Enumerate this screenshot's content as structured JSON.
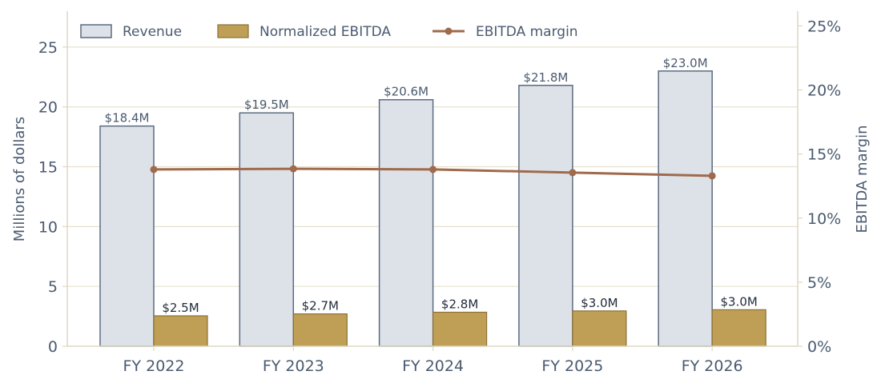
{
  "chart_data": {
    "type": "bar",
    "categories": [
      "FY 2022",
      "FY 2023",
      "FY 2024",
      "FY 2025",
      "FY 2026"
    ],
    "series": [
      {
        "name": "Revenue",
        "kind": "bar",
        "axis": "left",
        "values": [
          18.4,
          19.5,
          20.6,
          21.8,
          23.0
        ],
        "labels": [
          "$18.4M",
          "$19.5M",
          "$20.6M",
          "$21.8M",
          "$23.0M"
        ]
      },
      {
        "name": "Normalized EBITDA",
        "kind": "bar",
        "axis": "left",
        "values": [
          2.54,
          2.7,
          2.84,
          2.95,
          3.05
        ],
        "labels": [
          "$2.5M",
          "$2.7M",
          "$2.8M",
          "$3.0M",
          "$3.0M"
        ]
      },
      {
        "name": "EBITDA margin",
        "kind": "line",
        "axis": "right",
        "values": [
          13.8,
          13.85,
          13.8,
          13.55,
          13.3
        ]
      }
    ],
    "ylabel": "Millions of dollars",
    "y2label": "EBITDA margin",
    "ylim": [
      0,
      28
    ],
    "y2lim": [
      0,
      26.15
    ],
    "yticks": [
      0,
      5,
      10,
      15,
      20,
      25
    ],
    "y2ticks": [
      0,
      5,
      10,
      15,
      20,
      25
    ],
    "y2tick_labels": [
      "0%",
      "5%",
      "10%",
      "15%",
      "20%",
      "25%"
    ],
    "grid": "horizontal",
    "legend_position": "top-left",
    "colors": {
      "revenue_fill": "#dde2e9",
      "revenue_edge": "#5c6b80",
      "ebitda_fill": "#bf9f55",
      "ebitda_edge": "#8c7035",
      "margin_line": "#a06a4c",
      "grid": "#e6e2cf",
      "axis": "#ddd8c4",
      "text": "#4a5a70"
    }
  }
}
